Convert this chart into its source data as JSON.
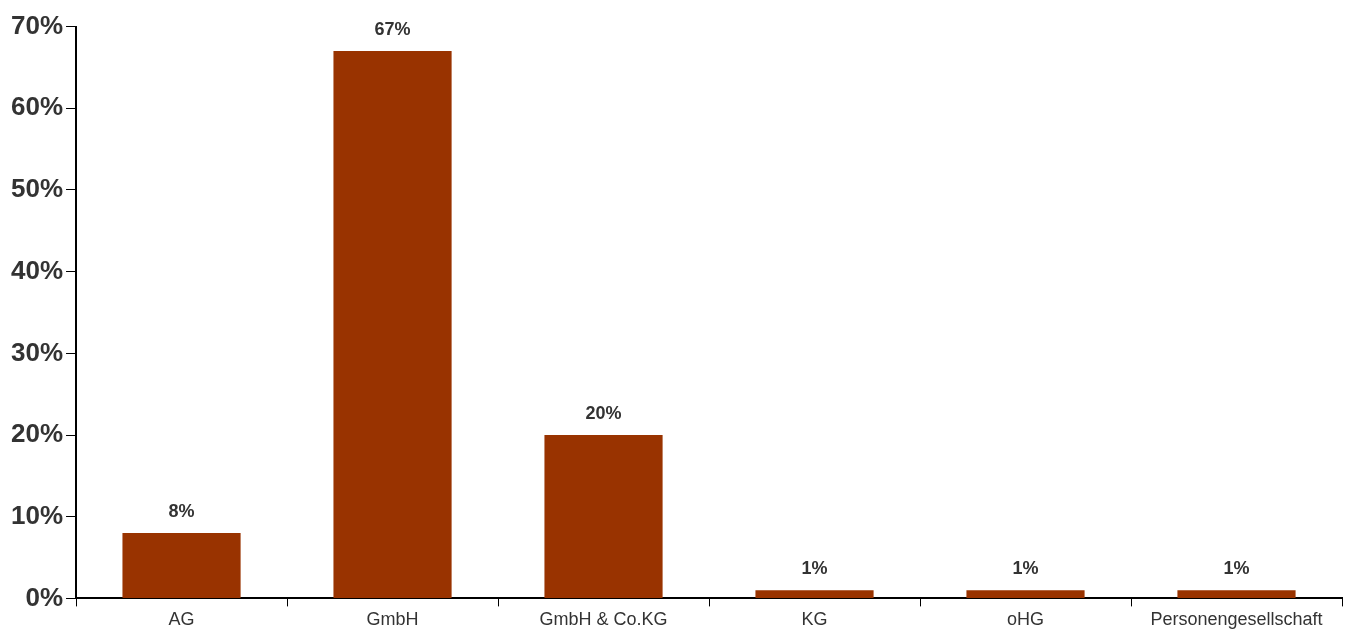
{
  "chart_data": {
    "type": "bar",
    "categories": [
      "AG",
      "GmbH",
      "GmbH & Co.KG",
      "KG",
      "oHG",
      "Personengesellschaft"
    ],
    "values": [
      8,
      67,
      20,
      1,
      1,
      1
    ],
    "value_labels": [
      "8%",
      "67%",
      "20%",
      "1%",
      "1%",
      "1%"
    ],
    "color": "#993300",
    "ylim": [
      0,
      70
    ],
    "yticks": [
      {
        "value": 0,
        "label": "0%"
      },
      {
        "value": 10,
        "label": "10%"
      },
      {
        "value": 20,
        "label": "20%"
      },
      {
        "value": 30,
        "label": "30%"
      },
      {
        "value": 40,
        "label": "40%"
      },
      {
        "value": 50,
        "label": "50%"
      },
      {
        "value": 60,
        "label": "60%"
      },
      {
        "value": 70,
        "label": "70%"
      }
    ],
    "grid": false,
    "legend": false
  }
}
